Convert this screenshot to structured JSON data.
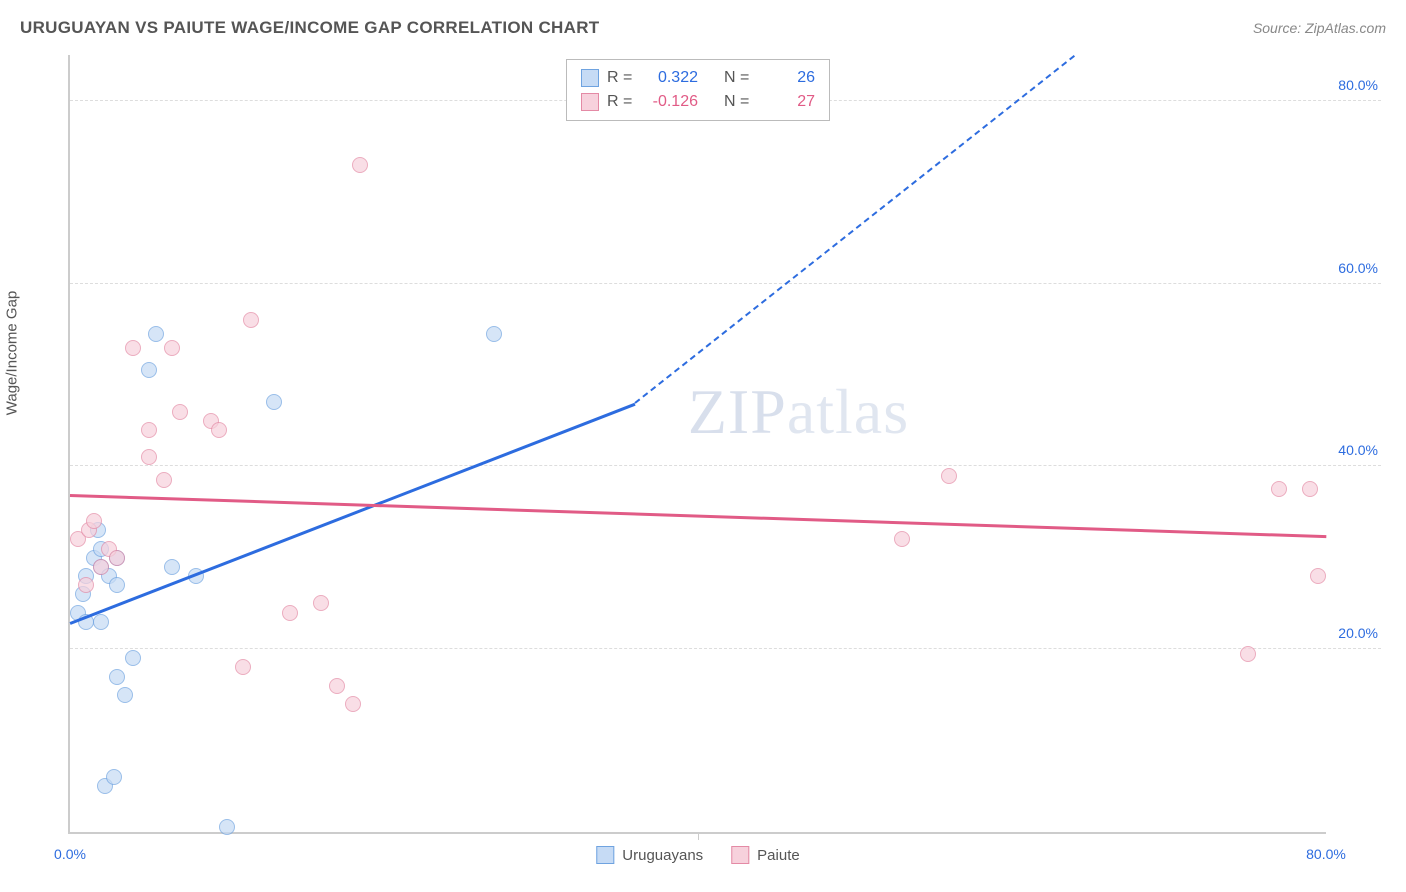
{
  "title": "URUGUAYAN VS PAIUTE WAGE/INCOME GAP CORRELATION CHART",
  "source": "Source: ZipAtlas.com",
  "y_axis_label": "Wage/Income Gap",
  "watermark_a": "ZIP",
  "watermark_b": "atlas",
  "chart": {
    "type": "scatter",
    "xlim": [
      0,
      80
    ],
    "ylim": [
      0,
      85
    ],
    "y_ticks": [
      20,
      40,
      60,
      80
    ],
    "y_tick_labels": [
      "20.0%",
      "40.0%",
      "60.0%",
      "80.0%"
    ],
    "x_ticks": [
      0,
      40,
      80
    ],
    "x_tick_labels": [
      "0.0%",
      "",
      "80.0%"
    ],
    "grid_color": "#dddddd",
    "axis_color": "#cccccc",
    "tick_label_color_x0": "#2d6cdf",
    "tick_label_color_x80": "#2d6cdf",
    "tick_label_color_y": "#2d6cdf",
    "series": [
      {
        "name": "Uruguayans",
        "color_fill": "#c6dbf5",
        "color_stroke": "#6fa3e0",
        "r_value": "0.322",
        "n_value": "26",
        "trend": {
          "x1": 0,
          "y1": 23,
          "x2": 36,
          "y2": 47,
          "color": "#2d6cdf",
          "dash_x1": 36,
          "dash_y1": 47,
          "dash_x2": 64,
          "dash_y2": 85
        },
        "points": [
          [
            0.5,
            24
          ],
          [
            1,
            23
          ],
          [
            1,
            28
          ],
          [
            1.5,
            30
          ],
          [
            2,
            31
          ],
          [
            2,
            29
          ],
          [
            2.5,
            28
          ],
          [
            3,
            30
          ],
          [
            3,
            27
          ],
          [
            2,
            23
          ],
          [
            0.8,
            26
          ],
          [
            1.8,
            33
          ],
          [
            2.2,
            5
          ],
          [
            2.8,
            6
          ],
          [
            3,
            17
          ],
          [
            3.5,
            15
          ],
          [
            4,
            19
          ],
          [
            5,
            50.5
          ],
          [
            5.5,
            54.5
          ],
          [
            6.5,
            29
          ],
          [
            8,
            28
          ],
          [
            10,
            0.5
          ],
          [
            13,
            47
          ],
          [
            27,
            54.5
          ]
        ]
      },
      {
        "name": "Paiute",
        "color_fill": "#f7d1dc",
        "color_stroke": "#e48aa5",
        "r_value": "-0.126",
        "n_value": "27",
        "trend": {
          "x1": 0,
          "y1": 37,
          "x2": 80,
          "y2": 32.5,
          "color": "#e15b86"
        },
        "points": [
          [
            0.5,
            32
          ],
          [
            1,
            27
          ],
          [
            1.2,
            33
          ],
          [
            1.5,
            34
          ],
          [
            2,
            29
          ],
          [
            2.5,
            31
          ],
          [
            3,
            30
          ],
          [
            4,
            53
          ],
          [
            5,
            44
          ],
          [
            5,
            41
          ],
          [
            6,
            38.5
          ],
          [
            6.5,
            53
          ],
          [
            7,
            46
          ],
          [
            9,
            45
          ],
          [
            9.5,
            44
          ],
          [
            11,
            18
          ],
          [
            11.5,
            56
          ],
          [
            14,
            24
          ],
          [
            16,
            25
          ],
          [
            17,
            16
          ],
          [
            18,
            14
          ],
          [
            18.5,
            73
          ],
          [
            53,
            32
          ],
          [
            56,
            39
          ],
          [
            75,
            19.5
          ],
          [
            77,
            37.5
          ],
          [
            79,
            37.5
          ],
          [
            79.5,
            28
          ]
        ]
      }
    ],
    "legend_top": {
      "r_label": "R =",
      "n_label": "N ="
    },
    "legend_bottom": [
      {
        "label": "Uruguayans",
        "fill": "#c6dbf5",
        "stroke": "#6fa3e0"
      },
      {
        "label": "Paiute",
        "fill": "#f7d1dc",
        "stroke": "#e48aa5"
      }
    ]
  }
}
